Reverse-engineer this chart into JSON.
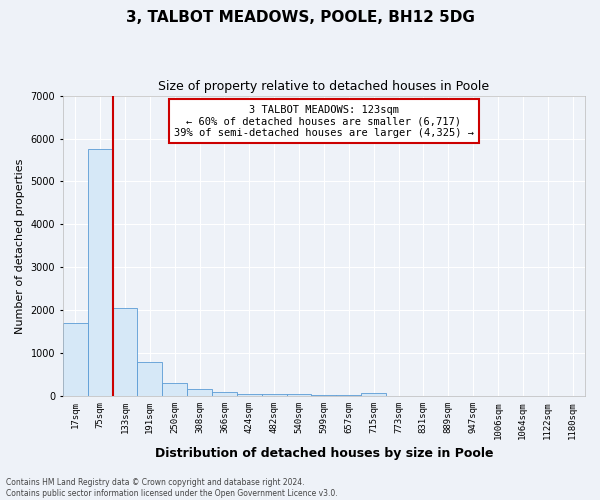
{
  "title": "3, TALBOT MEADOWS, POOLE, BH12 5DG",
  "subtitle": "Size of property relative to detached houses in Poole",
  "xlabel": "Distribution of detached houses by size in Poole",
  "ylabel": "Number of detached properties",
  "categories": [
    "17sqm",
    "75sqm",
    "133sqm",
    "191sqm",
    "250sqm",
    "308sqm",
    "366sqm",
    "424sqm",
    "482sqm",
    "540sqm",
    "599sqm",
    "657sqm",
    "715sqm",
    "773sqm",
    "831sqm",
    "889sqm",
    "947sqm",
    "1006sqm",
    "1064sqm",
    "1122sqm",
    "1180sqm"
  ],
  "values": [
    1700,
    5750,
    2050,
    800,
    300,
    175,
    100,
    60,
    50,
    40,
    30,
    25,
    70,
    0,
    0,
    0,
    0,
    0,
    0,
    0,
    0
  ],
  "bar_color": "#d6e8f7",
  "bar_edge_color": "#5b9bd5",
  "red_line_x": 1.5,
  "red_line_color": "#cc0000",
  "annotation_text": "3 TALBOT MEADOWS: 123sqm\n← 60% of detached houses are smaller (6,717)\n39% of semi-detached houses are larger (4,325) →",
  "annotation_box_edge": "#cc0000",
  "ylim": [
    0,
    7000
  ],
  "yticks": [
    0,
    1000,
    2000,
    3000,
    4000,
    5000,
    6000,
    7000
  ],
  "footnote": "Contains HM Land Registry data © Crown copyright and database right 2024.\nContains public sector information licensed under the Open Government Licence v3.0.",
  "background_color": "#eef2f8",
  "plot_background": "#eef2f8",
  "grid_color": "#ffffff",
  "title_fontsize": 11,
  "subtitle_fontsize": 9,
  "xlabel_fontsize": 9,
  "ylabel_fontsize": 8,
  "tick_fontsize": 6.5,
  "annot_fontsize": 7.5,
  "footnote_fontsize": 5.5
}
